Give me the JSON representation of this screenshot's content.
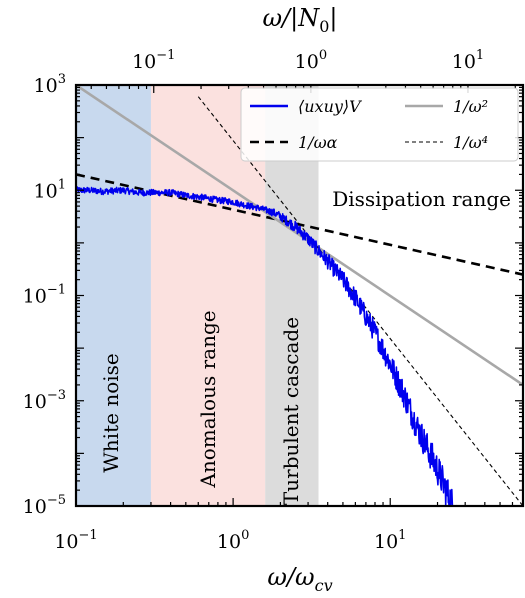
{
  "chart_data": {
    "type": "line",
    "xlabel": "ω/ω_cv",
    "x2label": "ω/|N_0|",
    "x_scale": "log",
    "y_scale": "log",
    "xlim": [
      0.1,
      70
    ],
    "ylim": [
      1e-05,
      1000
    ],
    "x2_factor": 0.32,
    "grid": false,
    "legend_position": "top-right",
    "x_ticks": [
      {
        "value": 0.1,
        "base": "10",
        "exp": "−1"
      },
      {
        "value": 1,
        "base": "10",
        "exp": "0"
      },
      {
        "value": 10,
        "base": "10",
        "exp": "1"
      }
    ],
    "x2_ticks": [
      {
        "value": 0.1,
        "base": "10",
        "exp": "−1"
      },
      {
        "value": 1,
        "base": "10",
        "exp": "0"
      },
      {
        "value": 10,
        "base": "10",
        "exp": "1"
      }
    ],
    "y_ticks": [
      {
        "value": 1e-05,
        "base": "10",
        "exp": "−5"
      },
      {
        "value": 0.001,
        "base": "10",
        "exp": "−3"
      },
      {
        "value": 0.1,
        "base": "10",
        "exp": "−1"
      },
      {
        "value": 10,
        "base": "10",
        "exp": "1"
      },
      {
        "value": 1000,
        "base": "10",
        "exp": "3"
      }
    ],
    "regions": [
      {
        "label": "White noise",
        "x_from": 0.1,
        "x_to": 0.3,
        "color": "#c8d9ee"
      },
      {
        "label": "Anomalous range",
        "x_from": 0.3,
        "x_to": 1.6,
        "color": "#fbe1df"
      },
      {
        "label": "Turbulent cascade",
        "x_from": 1.6,
        "x_to": 3.5,
        "color": "#dcdcdc"
      },
      {
        "label": "Dissipation range",
        "x_from": 3.5,
        "x_to": 70,
        "color": "#ffffff"
      }
    ],
    "series": [
      {
        "name": "⟨u_x u_y⟩_V",
        "style": "solid",
        "color": "#0000ee",
        "x": [
          0.1,
          0.12,
          0.15,
          0.2,
          0.25,
          0.3,
          0.4,
          0.5,
          0.6,
          0.8,
          1.0,
          1.2,
          1.5,
          1.8,
          2.0,
          2.5,
          3.0,
          3.5,
          4.0,
          5.0,
          6.0,
          7.0,
          8.0,
          10,
          12,
          15,
          20,
          25,
          30
        ],
        "values": [
          10,
          10,
          9.5,
          10,
          9,
          9,
          9,
          8,
          7.5,
          6.5,
          6,
          5.2,
          4.5,
          3.8,
          3.2,
          2.0,
          1.2,
          0.7,
          0.45,
          0.2,
          0.09,
          0.04,
          0.02,
          0.005,
          0.0015,
          0.0003,
          5e-05,
          1e-05,
          3e-06
        ],
        "noisy": true
      },
      {
        "name": "1/ω^α",
        "style": "dashed",
        "color": "#000000",
        "x": [
          0.1,
          70
        ],
        "values": [
          20,
          0.25
        ]
      },
      {
        "name": "1/ω^2",
        "style": "solid",
        "color": "#a8a8a8",
        "x": [
          0.1,
          70
        ],
        "values": [
          1000,
          0.002
        ]
      },
      {
        "name": "1/ω^4",
        "style": "thin-dashed",
        "color": "#000000",
        "x": [
          0.6,
          70
        ],
        "values": [
          600,
          1e-05
        ]
      }
    ],
    "legend": [
      {
        "name": "⟨u_x u_y⟩_V",
        "label": "⟨uxuy⟩V",
        "style": "solid",
        "color": "#0000ee"
      },
      {
        "name": "1/ω^2",
        "label": "1/ω²",
        "style": "solid",
        "color": "#a8a8a8"
      },
      {
        "name": "1/ω^α",
        "label": "1/ωα",
        "style": "dashed",
        "color": "#000000"
      },
      {
        "name": "1/ω^4",
        "label": "1/ω⁴",
        "style": "thin-dashed",
        "color": "#000000"
      }
    ]
  }
}
